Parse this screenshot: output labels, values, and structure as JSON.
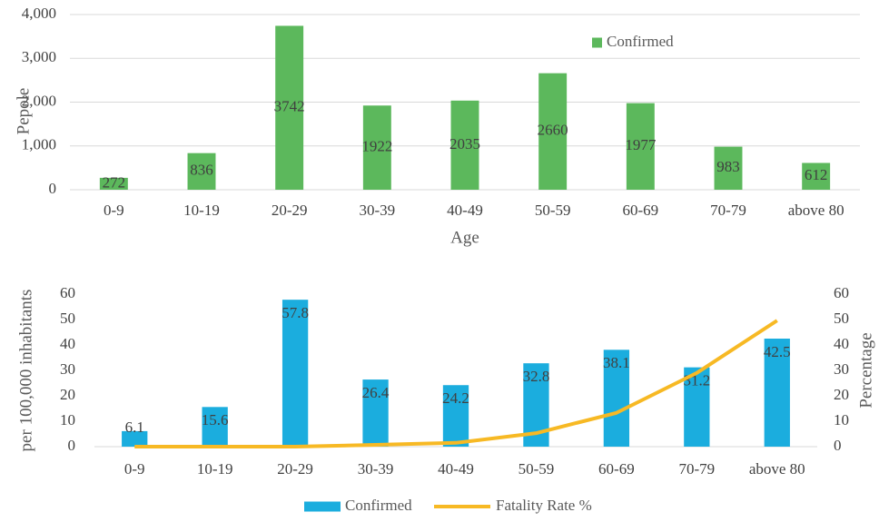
{
  "chart_data": [
    {
      "type": "bar",
      "x_label": "Age",
      "y_label": "Pepole",
      "categories": [
        "0-9",
        "10-19",
        "20-29",
        "30-39",
        "40-49",
        "50-59",
        "60-69",
        "70-79",
        "above 80"
      ],
      "series": [
        {
          "name": "Confirmed",
          "color": "#5cb85c",
          "values": [
            272,
            836,
            3742,
            1922,
            2035,
            2660,
            1977,
            983,
            612
          ]
        }
      ],
      "ylim": [
        0,
        4000
      ],
      "yticks": [
        0,
        {
          "value": 1000,
          "label": "1,000"
        },
        {
          "value": 2000,
          "label": "2,000"
        },
        {
          "value": 3000,
          "label": "3,000"
        },
        {
          "value": 4000,
          "label": "4,000"
        }
      ],
      "grid": true,
      "legend": "top-right"
    },
    {
      "type": "combo",
      "y_label": "per 100,000 inhabitants",
      "y2_label": "Percentage",
      "categories": [
        "0-9",
        "10-19",
        "20-29",
        "30-39",
        "40-49",
        "50-59",
        "60-69",
        "70-79",
        "above 80"
      ],
      "series": [
        {
          "name": "Confirmed",
          "type": "bar",
          "color": "#1badde",
          "values": [
            6.1,
            15.6,
            57.8,
            26.4,
            24.2,
            32.8,
            38.1,
            31.2,
            42.5
          ]
        },
        {
          "name": "Fatality Rate %",
          "type": "line",
          "axis": "y2",
          "color": "#f7b924",
          "values": [
            0,
            0,
            0,
            0.7,
            1.5,
            5.3,
            13.3,
            29,
            49.6
          ]
        }
      ],
      "ylim": [
        0,
        60
      ],
      "yticks": [
        0,
        10,
        20,
        30,
        40,
        50,
        60
      ],
      "y2lim": [
        0,
        60
      ],
      "y2ticks": [
        0,
        10,
        20,
        30,
        40,
        50,
        60
      ],
      "grid": false,
      "legend": "bottom"
    }
  ]
}
